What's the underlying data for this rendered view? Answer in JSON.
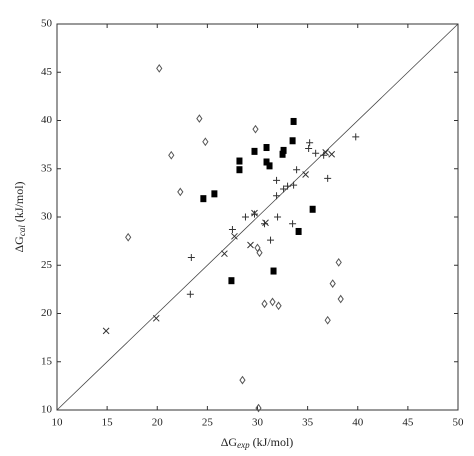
{
  "chart_data": {
    "type": "scatter",
    "xlabel": {
      "symbol": "ΔG",
      "subscript": "exp",
      "unit": "(kJ/mol)"
    },
    "ylabel": {
      "symbol": "ΔG",
      "subscript": "cal",
      "unit": "(kJ/mol)"
    },
    "xlim": [
      10,
      50
    ],
    "ylim": [
      10,
      50
    ],
    "xticks": [
      10,
      15,
      20,
      25,
      30,
      35,
      40,
      45,
      50
    ],
    "yticks": [
      10,
      15,
      20,
      25,
      30,
      35,
      40,
      45,
      50
    ],
    "diagonal": true,
    "series": [
      {
        "marker": "diamond",
        "color": "#555555",
        "x": [
          20.2,
          24.2,
          21.4,
          24.8,
          22.3,
          17.1,
          29.8,
          30.0,
          30.2,
          30.7,
          31.5,
          32.1,
          28.5,
          30.1,
          38.1,
          37.5,
          38.3,
          37.0
        ],
        "y": [
          45.4,
          40.2,
          36.4,
          37.8,
          32.6,
          27.9,
          39.1,
          26.8,
          26.3,
          21.0,
          21.2,
          20.8,
          13.1,
          10.2,
          25.3,
          23.1,
          21.5,
          19.3
        ]
      },
      {
        "marker": "square",
        "color": "#000000",
        "x": [
          28.2,
          28.2,
          29.7,
          30.9,
          30.9,
          31.2,
          32.5,
          32.6,
          33.5,
          33.6,
          24.6,
          25.7,
          27.4,
          31.6,
          34.1,
          35.5
        ],
        "y": [
          35.8,
          34.9,
          36.8,
          37.2,
          35.7,
          35.3,
          36.5,
          36.9,
          37.9,
          39.9,
          31.9,
          32.4,
          23.4,
          24.4,
          28.5,
          30.8
        ]
      },
      {
        "marker": "plus",
        "color": "#333333",
        "x": [
          23.4,
          23.3,
          27.5,
          28.8,
          29.7,
          30.7,
          31.3,
          32.0,
          31.9,
          32.6,
          33.0,
          33.6,
          33.9,
          31.9,
          35.1,
          35.2,
          35.8,
          36.6,
          37.0,
          39.8,
          33.5
        ],
        "y": [
          25.8,
          22.0,
          28.7,
          30.0,
          30.3,
          29.3,
          27.6,
          30.0,
          32.2,
          32.9,
          33.2,
          33.3,
          34.9,
          33.8,
          37.1,
          37.7,
          36.6,
          36.4,
          34.0,
          38.3,
          29.3
        ]
      },
      {
        "marker": "cross",
        "color": "#333333",
        "x": [
          14.9,
          19.9,
          26.7,
          27.7,
          29.3,
          29.7,
          30.8,
          34.8,
          36.8,
          37.4
        ],
        "y": [
          18.2,
          19.5,
          26.2,
          28.0,
          27.1,
          30.4,
          29.4,
          34.4,
          36.7,
          36.5
        ]
      }
    ]
  }
}
